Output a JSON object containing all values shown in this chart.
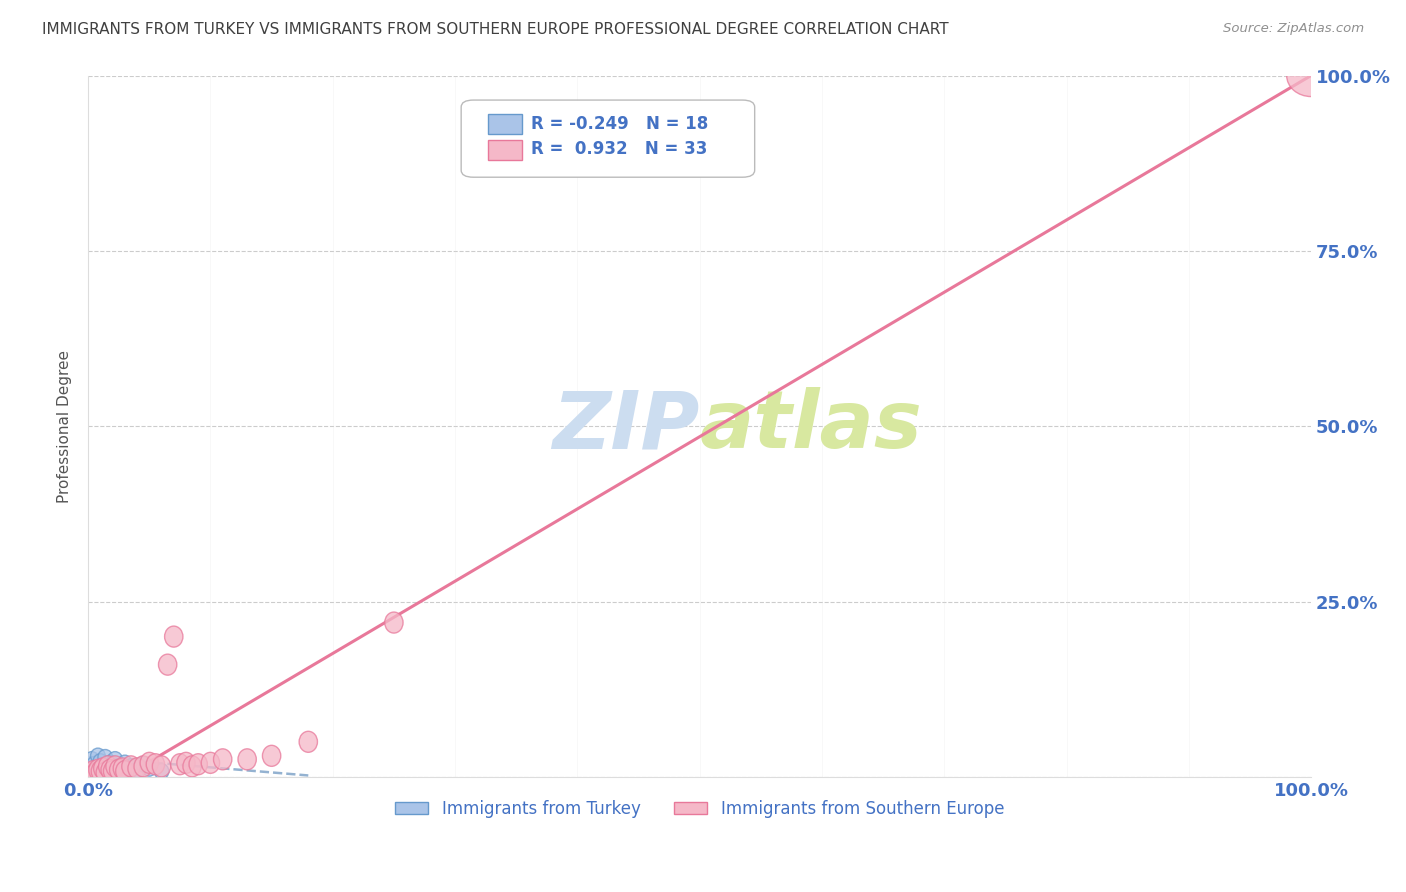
{
  "title": "IMMIGRANTS FROM TURKEY VS IMMIGRANTS FROM SOUTHERN EUROPE PROFESSIONAL DEGREE CORRELATION CHART",
  "source": "Source: ZipAtlas.com",
  "ylabel": "Professional Degree",
  "turkey_R": -0.249,
  "turkey_N": 18,
  "se_R": 0.932,
  "se_N": 33,
  "turkey_color": "#aac4e8",
  "se_color": "#f5b8c8",
  "turkey_edge_color": "#6699cc",
  "se_edge_color": "#e8789a",
  "turkey_line_color": "#88aacc",
  "se_line_color": "#e8789a",
  "watermark_color": "#ccddf0",
  "background_color": "#ffffff",
  "title_color": "#404040",
  "source_color": "#909090",
  "tick_label_color": "#4472c4",
  "legend_text_color": "#4472c4",
  "turkey_points_x": [
    0.3,
    0.5,
    0.8,
    1.0,
    1.2,
    1.4,
    1.6,
    1.8,
    2.0,
    2.2,
    2.5,
    2.8,
    3.0,
    3.5,
    4.0,
    4.5,
    5.0,
    6.0
  ],
  "turkey_points_y": [
    2.5,
    1.8,
    3.0,
    2.2,
    1.5,
    2.8,
    1.2,
    2.0,
    1.8,
    2.5,
    1.5,
    1.2,
    2.0,
    1.5,
    1.0,
    1.8,
    1.2,
    0.8
  ],
  "se_points_x": [
    0.2,
    0.4,
    0.6,
    0.8,
    1.0,
    1.2,
    1.4,
    1.6,
    1.8,
    2.0,
    2.2,
    2.5,
    2.8,
    3.0,
    3.5,
    4.0,
    4.5,
    5.0,
    5.5,
    6.0,
    6.5,
    7.0,
    7.5,
    8.0,
    8.5,
    9.0,
    10.0,
    11.0,
    13.0,
    15.0,
    18.0,
    25.0,
    100.0
  ],
  "se_points_y": [
    0.5,
    0.8,
    0.5,
    1.0,
    0.8,
    1.2,
    0.6,
    1.5,
    1.0,
    0.8,
    1.5,
    1.0,
    1.2,
    0.8,
    1.5,
    1.2,
    1.5,
    2.0,
    1.8,
    1.5,
    16.0,
    20.0,
    1.8,
    2.0,
    1.5,
    1.8,
    2.0,
    2.5,
    2.5,
    3.0,
    5.0,
    22.0,
    100.0
  ],
  "xlim": [
    0,
    100
  ],
  "ylim": [
    0,
    100
  ],
  "x_ticks": [
    0,
    100
  ],
  "y_ticks": [
    0,
    25,
    50,
    75,
    100
  ],
  "x_tick_labels": [
    "0.0%",
    "100.0%"
  ],
  "y_tick_labels": [
    "25.0%",
    "50.0%",
    "75.0%",
    "100.0%"
  ]
}
